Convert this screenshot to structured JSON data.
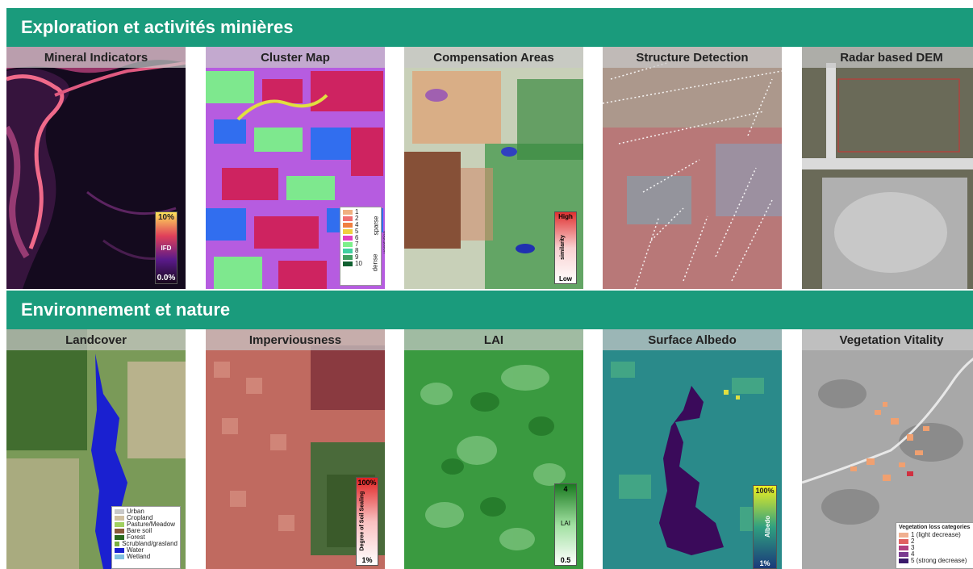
{
  "sections": {
    "top": {
      "title": "Exploration et activités minières"
    },
    "bottom": {
      "title": "Environnement et nature"
    }
  },
  "panels_top": [
    {
      "title": "Mineral Indicators",
      "legend": {
        "top": "10%",
        "middle": "IFD",
        "bottom": "0.0%"
      }
    },
    {
      "title": "Cluster Map",
      "legend": {
        "items": [
          "1",
          "2",
          "4",
          "5",
          "6",
          "7",
          "8",
          "9",
          "10"
        ],
        "labels": [
          "sparse",
          "dense",
          "vegetation"
        ]
      }
    },
    {
      "title": "Compensation Areas",
      "legend": {
        "top": "High",
        "middle": "similarity",
        "bottom": "Low"
      }
    },
    {
      "title": "Structure Detection"
    },
    {
      "title": "Radar based DEM"
    }
  ],
  "panels_bottom": [
    {
      "title": "Landcover",
      "legend": {
        "items": [
          "Urban",
          "Cropland",
          "Pasture/Meadow",
          "Bare soil",
          "Forest",
          "Scrubland/grasland",
          "Water",
          "Wetland"
        ]
      }
    },
    {
      "title": "Imperviousness",
      "legend": {
        "top": "100%",
        "middle": "Degree of Soil Sealing",
        "bottom": "1%"
      }
    },
    {
      "title": "LAI",
      "legend": {
        "top": "4",
        "middle": "LAI",
        "bottom": "0.5"
      }
    },
    {
      "title": "Surface Albedo",
      "legend": {
        "top": "100%",
        "middle": "Albedo",
        "bottom": "1%"
      }
    },
    {
      "title": "Vegetation Vitality",
      "legend": {
        "title": "Vegetation loss categories",
        "items": [
          "1 (light decrease)",
          "2",
          "3",
          "4",
          "5 (strong decrease)"
        ]
      }
    }
  ],
  "colors": {
    "banner": "#1a9b7c"
  }
}
